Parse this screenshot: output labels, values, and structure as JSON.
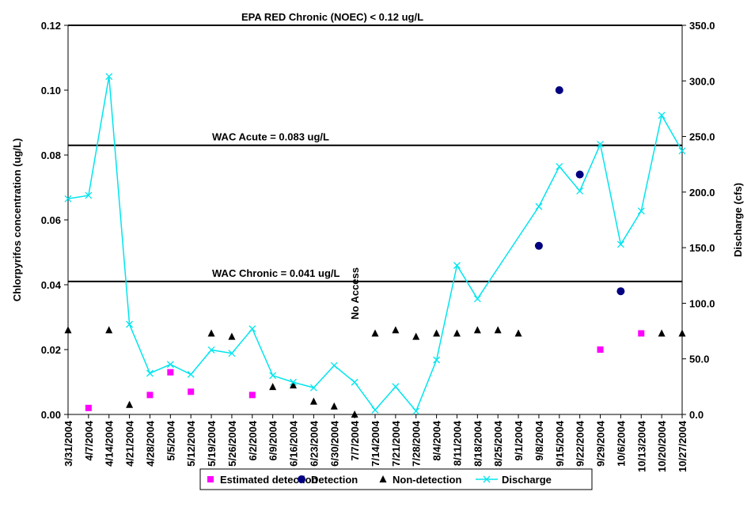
{
  "chart_data": {
    "type": "combo",
    "y_label": "Chlorpyrifos concentration (ug/L)",
    "y2_label": "Discharge (cfs)",
    "categories": [
      "3/31/2004",
      "4/7/2004",
      "4/14/2004",
      "4/21/2004",
      "4/28/2004",
      "5/5/2004",
      "5/12/2004",
      "5/19/2004",
      "5/26/2004",
      "6/2/2004",
      "6/9/2004",
      "6/16/2004",
      "6/23/2004",
      "6/30/2004",
      "7/7/2004",
      "7/14/2004",
      "7/21/2004",
      "7/28/2004",
      "8/4/2004",
      "8/11/2004",
      "8/18/2004",
      "8/25/2004",
      "9/1/2004",
      "9/8/2004",
      "9/15/2004",
      "9/22/2004",
      "9/29/2004",
      "10/6/2004",
      "10/13/2004",
      "10/20/2004",
      "10/27/2004"
    ],
    "ylim": [
      0,
      0.12
    ],
    "yticks": [
      {
        "value": 0,
        "label": "0.00"
      },
      {
        "value": 0.02,
        "label": "0.02"
      },
      {
        "value": 0.04,
        "label": "0.04"
      },
      {
        "value": 0.06,
        "label": "0.06"
      },
      {
        "value": 0.08,
        "label": "0.08"
      },
      {
        "value": 0.1,
        "label": "0.10"
      },
      {
        "value": 0.12,
        "label": "0.12"
      }
    ],
    "y2lim": [
      0,
      350
    ],
    "y2ticks": [
      {
        "value": 0,
        "label": "0.0"
      },
      {
        "value": 50,
        "label": "50.0"
      },
      {
        "value": 100,
        "label": "100.0"
      },
      {
        "value": 150,
        "label": "150.0"
      },
      {
        "value": 200,
        "label": "200.0"
      },
      {
        "value": 250,
        "label": "250.0"
      },
      {
        "value": 300,
        "label": "300.0"
      },
      {
        "value": 350,
        "label": "350.0"
      }
    ],
    "grid": false,
    "legend": "bottom",
    "series": [
      {
        "name": "Estimated detection",
        "type": "scatter",
        "marker": "square",
        "color": "#ff00ff",
        "values": [
          null,
          0.002,
          null,
          null,
          0.006,
          0.013,
          0.007,
          null,
          null,
          0.006,
          null,
          null,
          null,
          null,
          null,
          null,
          null,
          null,
          null,
          null,
          null,
          null,
          null,
          null,
          null,
          null,
          0.02,
          null,
          0.025,
          null,
          null
        ]
      },
      {
        "name": "Detection",
        "type": "scatter",
        "marker": "circle",
        "color": "#000080",
        "values": [
          null,
          null,
          null,
          null,
          null,
          null,
          null,
          null,
          null,
          null,
          null,
          null,
          null,
          null,
          null,
          null,
          null,
          null,
          null,
          null,
          null,
          null,
          null,
          0.052,
          0.1,
          0.074,
          null,
          0.038,
          null,
          null,
          null
        ]
      },
      {
        "name": "Non-detection",
        "type": "scatter",
        "marker": "triangle",
        "color": "#000000",
        "values": [
          0.026,
          null,
          0.026,
          0.003,
          null,
          null,
          null,
          0.025,
          0.024,
          null,
          0.0085,
          0.009,
          0.004,
          0.0025,
          0,
          0.025,
          0.026,
          0.024,
          0.025,
          0.025,
          0.026,
          0.026,
          0.025,
          null,
          null,
          null,
          null,
          null,
          null,
          0.025,
          0.025
        ]
      },
      {
        "name": "Discharge",
        "type": "line",
        "marker": "x",
        "color": "#00e5ee",
        "axis": "y2",
        "connect_gaps": true,
        "values": [
          194,
          197,
          304,
          81,
          37,
          45,
          36,
          58,
          55,
          77,
          35,
          29,
          24,
          44,
          29,
          4,
          25,
          3,
          49,
          134,
          104,
          null,
          null,
          187,
          223,
          201,
          243,
          153,
          183,
          269,
          237
        ]
      }
    ],
    "reference_lines": [
      {
        "value": 0.12,
        "label": "EPA RED Chronic (NOEC) < 0.12 ug/L"
      },
      {
        "value": 0.083,
        "label": "WAC Acute = 0.083 ug/L"
      },
      {
        "value": 0.041,
        "label": "WAC Chronic = 0.041 ug/L"
      }
    ],
    "annotations": [
      {
        "category_index": 14,
        "text": "No Access"
      }
    ]
  }
}
